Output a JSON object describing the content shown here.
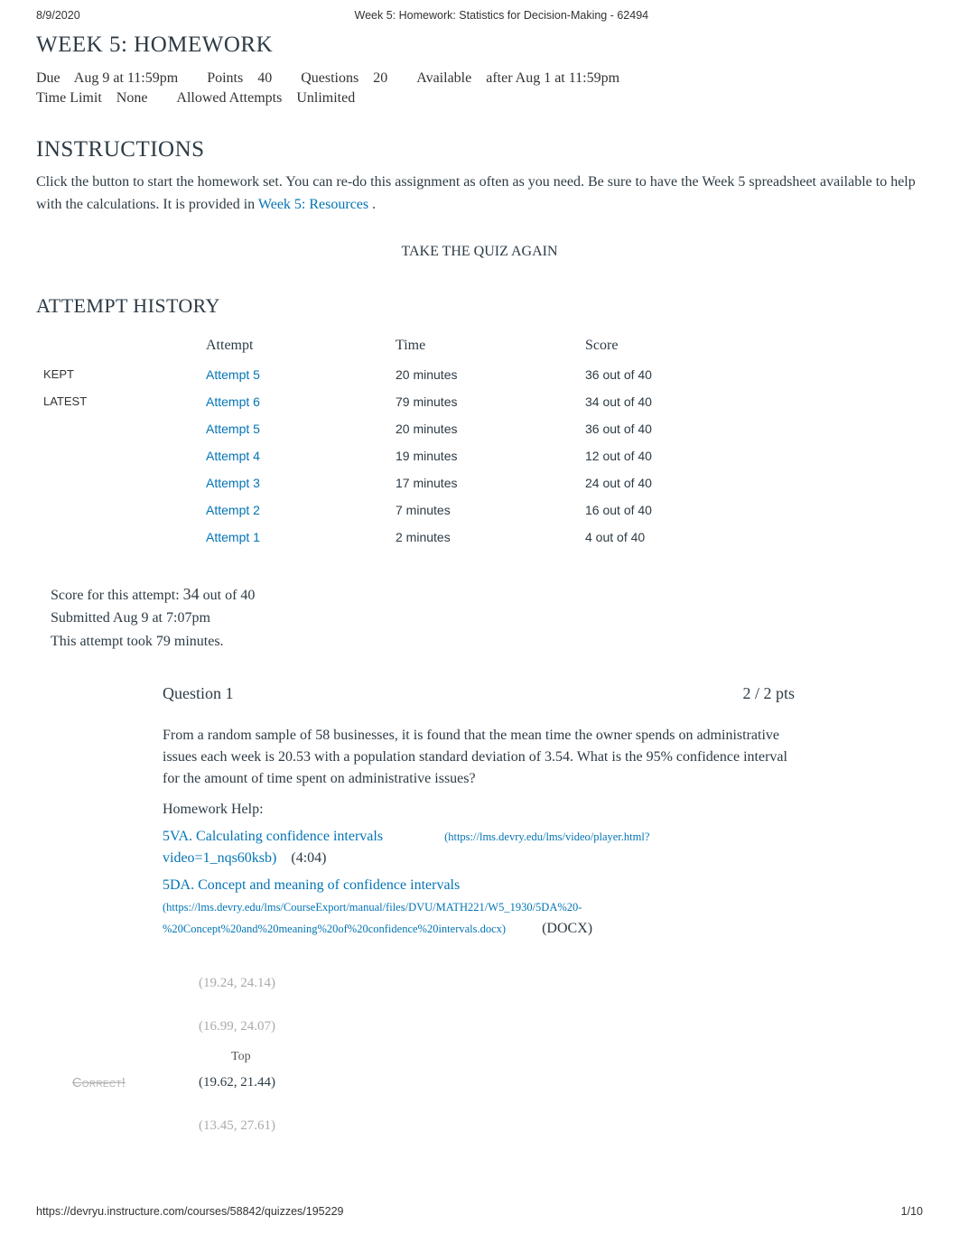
{
  "header": {
    "date": "8/9/2020",
    "doc_title": "Week 5: Homework: Statistics for Decision-Making - 62494"
  },
  "page": {
    "h1": "WEEK 5: HOMEWORK",
    "meta": [
      {
        "k": "Due",
        "v": "Aug 9 at 11:59pm"
      },
      {
        "k": "Points",
        "v": "40"
      },
      {
        "k": "Questions",
        "v": "20"
      },
      {
        "k": "Available",
        "v": "after Aug 1 at 11:59pm"
      },
      {
        "k": "Time Limit",
        "v": "None"
      },
      {
        "k": "Allowed Attempts",
        "v": "Unlimited"
      }
    ],
    "instructions_h": "INSTRUCTIONS",
    "instructions_body_pre": "Click the button to start the homework set. You can re-do this assignment as often as you need. Be sure to have the Week 5 spreadsheet available to help with the calculations. It is provided in ",
    "instructions_link": "Week 5: Resources",
    "instructions_body_post": " .",
    "take_again": "TAKE THE QUIZ AGAIN",
    "attempt_history_h": "ATTEMPT HISTORY"
  },
  "attempts": {
    "columns": [
      "",
      "Attempt",
      "Time",
      "Score"
    ],
    "rows": [
      {
        "label": "KEPT",
        "attempt": "Attempt 5",
        "time": "20 minutes",
        "score": "36 out of 40"
      },
      {
        "label": "LATEST",
        "attempt": "Attempt 6",
        "time": "79 minutes",
        "score": "34 out of 40"
      },
      {
        "label": "",
        "attempt": "Attempt 5",
        "time": "20 minutes",
        "score": "36 out of 40"
      },
      {
        "label": "",
        "attempt": "Attempt 4",
        "time": "19 minutes",
        "score": "12 out of 40"
      },
      {
        "label": "",
        "attempt": "Attempt 3",
        "time": "17 minutes",
        "score": "24 out of 40"
      },
      {
        "label": "",
        "attempt": "Attempt 2",
        "time": "7 minutes",
        "score": "16 out of 40"
      },
      {
        "label": "",
        "attempt": "Attempt 1",
        "time": "2 minutes",
        "score": "4 out of 40"
      }
    ]
  },
  "score_block": {
    "line1_pre": "Score for this attempt: ",
    "score": "34",
    "line1_post": " out of 40",
    "line2": "Submitted Aug 9 at 7:07pm",
    "line3": "This attempt took 79 minutes."
  },
  "question": {
    "title": "Question 1",
    "pts": "2 / 2 pts",
    "stem": "From a random sample of 58 businesses, it is found that the mean time the owner spends on administrative issues each week is 20.53 with a population standard deviation of 3.54. What is the 95% confidence interval for the amount of time spent on administrative issues?",
    "hw_help_label": "Homework Help:",
    "links": {
      "v_text": "5VA. Calculating confidence intervals",
      "v_url": "(https://lms.devry.edu/lms/video/player.html?",
      "v_sub": "video=1_nqs60ksb)",
      "v_time": "(4:04)",
      "d_text": "5DA. Concept and meaning of confidence intervals",
      "d_url1": "(https://lms.devry.edu/lms/CourseExport/manual/files/DVU/MATH221/W5_1930/5DA%20-",
      "d_url2": "%20Concept%20and%20meaning%20of%20confidence%20intervals.docx)",
      "docx": "(DOCX)"
    },
    "answers": [
      {
        "text": "(19.24, 24.14)",
        "muted": true,
        "top_after": false,
        "correct": false
      },
      {
        "text": "(16.99, 24.07)",
        "muted": true,
        "top_after": true,
        "correct": false
      },
      {
        "text": "(19.62, 21.44)",
        "muted": false,
        "top_after": false,
        "correct": true
      },
      {
        "text": "(13.45, 27.61)",
        "muted": true,
        "top_after": false,
        "correct": false
      }
    ],
    "correct_badge": "Correct!",
    "top_label": "Top"
  },
  "footer": {
    "url": "https://devryu.instructure.com/courses/58842/quizzes/195229",
    "page": "1/10"
  },
  "colors": {
    "link": "#0374b5",
    "text": "#2d3b45",
    "muted": "#aaaaaa",
    "badge": "#b0b0b0",
    "background": "#ffffff"
  }
}
